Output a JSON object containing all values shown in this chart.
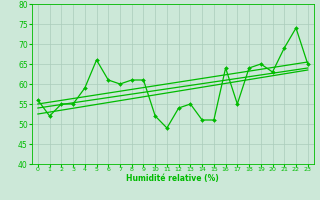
{
  "xlabel": "Humidité relative (%)",
  "xlim": [
    -0.5,
    23.5
  ],
  "ylim": [
    40,
    80
  ],
  "xticks": [
    0,
    1,
    2,
    3,
    4,
    5,
    6,
    7,
    8,
    9,
    10,
    11,
    12,
    13,
    14,
    15,
    16,
    17,
    18,
    19,
    20,
    21,
    22,
    23
  ],
  "yticks": [
    40,
    45,
    50,
    55,
    60,
    65,
    70,
    75,
    80
  ],
  "background_color": "#cce8d8",
  "grid_color": "#aaccbb",
  "line_color": "#00bb00",
  "main_x": [
    0,
    1,
    2,
    3,
    4,
    5,
    6,
    7,
    8,
    9,
    10,
    11,
    12,
    13,
    14,
    15,
    16,
    17,
    18,
    19,
    20,
    21,
    22,
    23
  ],
  "main_y": [
    56,
    52,
    55,
    55,
    59,
    66,
    61,
    60,
    61,
    61,
    52,
    49,
    54,
    55,
    51,
    51,
    64,
    55,
    64,
    65,
    63,
    69,
    74,
    65
  ],
  "trend1_x": [
    0,
    23
  ],
  "trend1_y": [
    55.0,
    65.5
  ],
  "trend2_x": [
    0,
    23
  ],
  "trend2_y": [
    54.0,
    64.0
  ],
  "trend3_x": [
    0,
    23
  ],
  "trend3_y": [
    52.5,
    63.5
  ]
}
